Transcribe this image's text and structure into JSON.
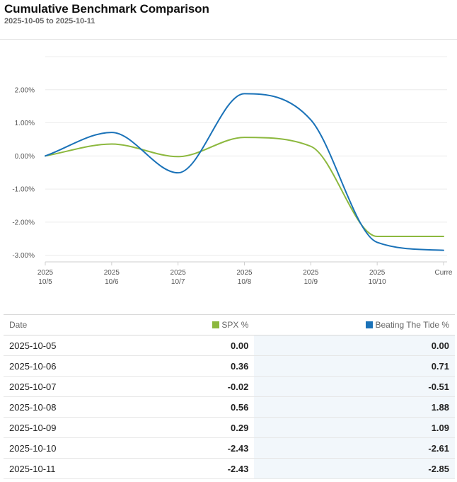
{
  "header": {
    "title": "Cumulative Benchmark Comparison",
    "subtitle": "2025-10-05 to 2025-10-11"
  },
  "chart_data": {
    "type": "line",
    "title": "Cumulative Benchmark Comparison",
    "x": [
      "2025-10-05",
      "2025-10-06",
      "2025-10-07",
      "2025-10-08",
      "2025-10-09",
      "2025-10-10",
      "2025-10-11"
    ],
    "xtick_labels": [
      {
        "line1": "2025",
        "line2": "10/5"
      },
      {
        "line1": "2025",
        "line2": "10/6"
      },
      {
        "line1": "2025",
        "line2": "10/7"
      },
      {
        "line1": "2025",
        "line2": "10/8"
      },
      {
        "line1": "2025",
        "line2": "10/9"
      },
      {
        "line1": "2025",
        "line2": "10/10"
      },
      {
        "line1": "Curre",
        "line2": ""
      }
    ],
    "ytick_values": [
      2,
      1,
      0,
      -1,
      -2,
      -3
    ],
    "ytick_labels": [
      "2.00%",
      "1.00%",
      "0.00%",
      "-1.00%",
      "-2.00%",
      "-3.00%"
    ],
    "ylim": [
      -3.2,
      3.0
    ],
    "grid": true,
    "series": [
      {
        "name": "SPX %",
        "color": "#8cb83e",
        "values": [
          0.0,
          0.36,
          -0.02,
          0.56,
          0.29,
          -2.43,
          -2.43
        ]
      },
      {
        "name": "Beating The Tide %",
        "color": "#1a72b8",
        "values": [
          0.0,
          0.71,
          -0.51,
          1.88,
          1.09,
          -2.61,
          -2.85
        ]
      }
    ]
  },
  "table": {
    "headers": {
      "date": "Date",
      "spx": "SPX %",
      "btt": "Beating The Tide %"
    },
    "rows": [
      {
        "date": "2025-10-05",
        "spx": "0.00",
        "btt": "0.00"
      },
      {
        "date": "2025-10-06",
        "spx": "0.36",
        "btt": "0.71"
      },
      {
        "date": "2025-10-07",
        "spx": "-0.02",
        "btt": "-0.51"
      },
      {
        "date": "2025-10-08",
        "spx": "0.56",
        "btt": "1.88"
      },
      {
        "date": "2025-10-09",
        "spx": "0.29",
        "btt": "1.09"
      },
      {
        "date": "2025-10-10",
        "spx": "-2.43",
        "btt": "-2.61"
      },
      {
        "date": "2025-10-11",
        "spx": "-2.43",
        "btt": "-2.85"
      }
    ]
  }
}
